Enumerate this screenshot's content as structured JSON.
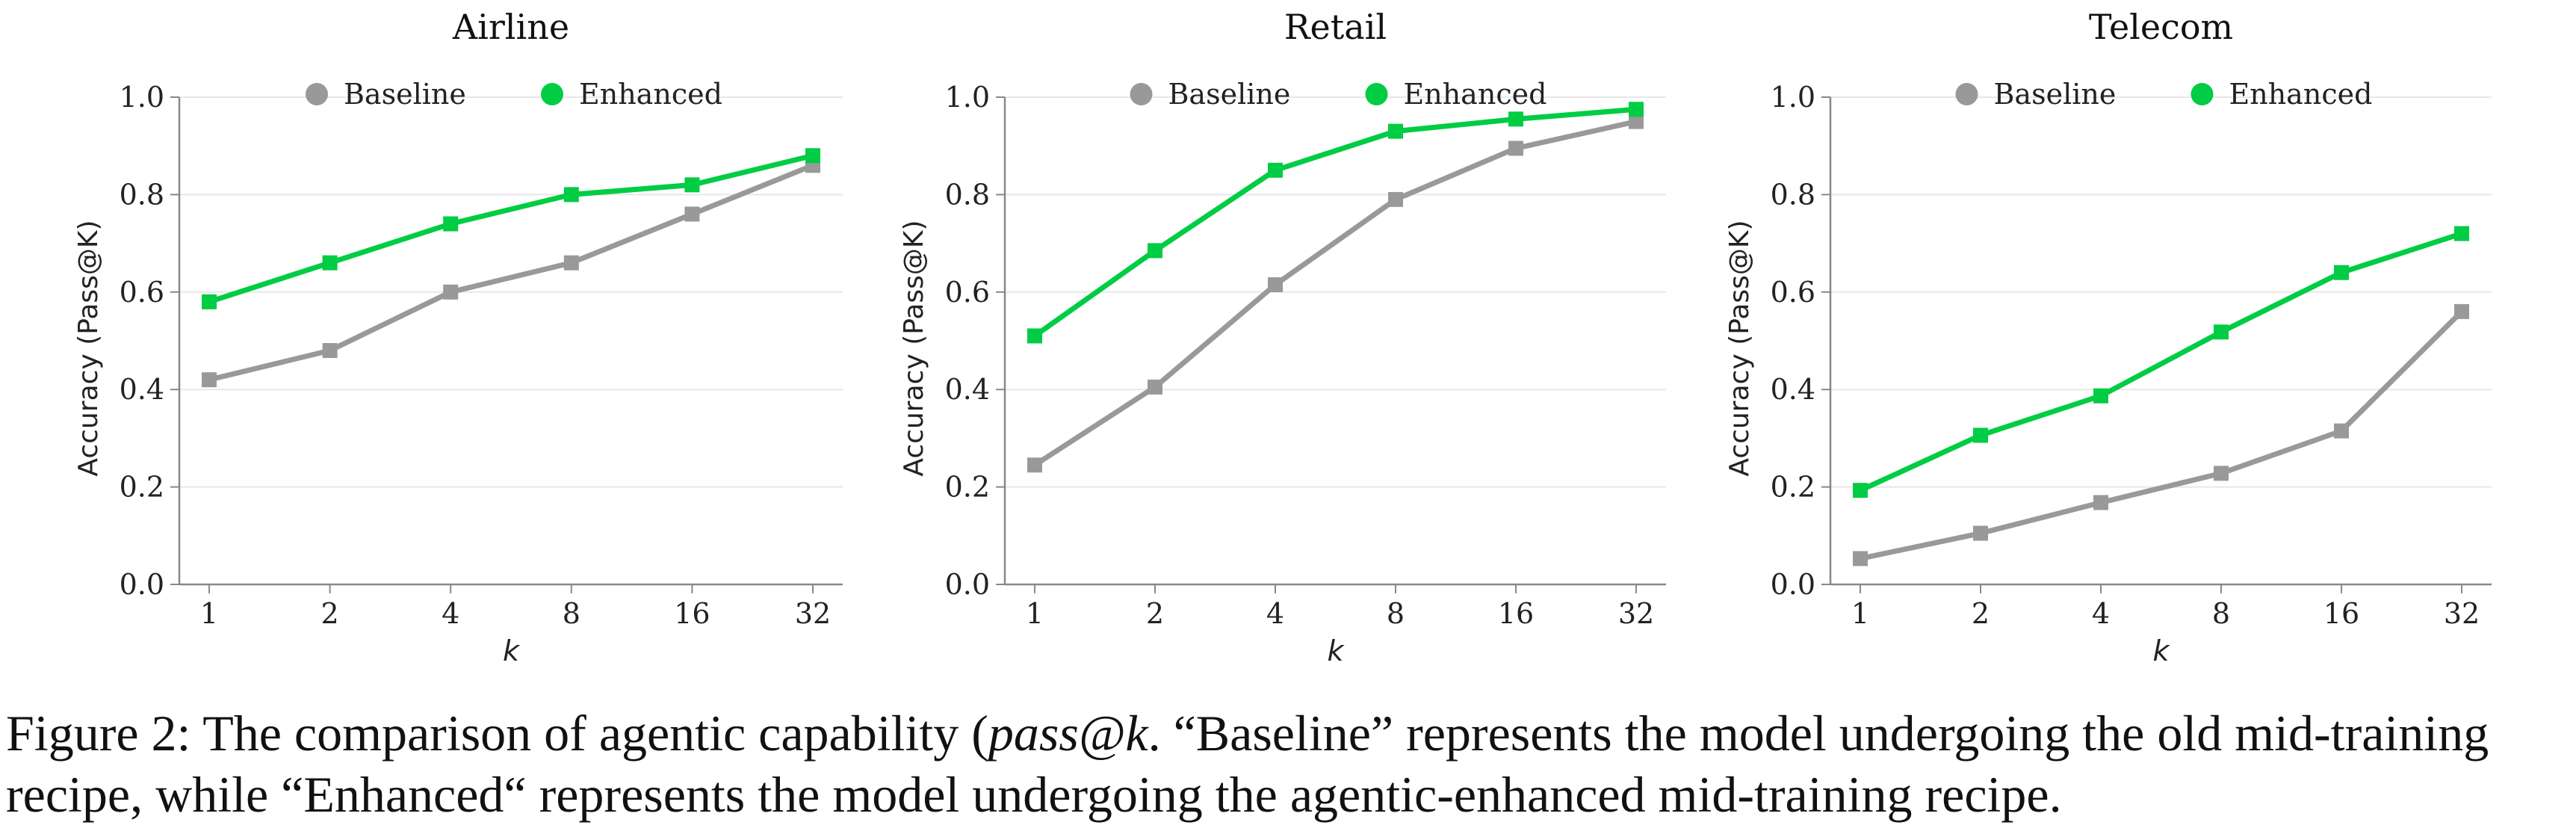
{
  "chart_data": [
    {
      "type": "line",
      "title": "Airline",
      "xlabel": "k",
      "ylabel": "Accuracy (Pass@K)",
      "categories": [
        "1",
        "2",
        "4",
        "8",
        "16",
        "32"
      ],
      "ylim": [
        0,
        1.0
      ],
      "yticks": [
        "0.0",
        "0.2",
        "0.4",
        "0.6",
        "0.8",
        "1.0"
      ],
      "grid": "horizontal",
      "legend": "top-center",
      "series": [
        {
          "name": "Baseline",
          "color": "#999999",
          "values": [
            0.42,
            0.48,
            0.6,
            0.66,
            0.76,
            0.86
          ]
        },
        {
          "name": "Enhanced",
          "color": "#00cc44",
          "values": [
            0.58,
            0.66,
            0.74,
            0.8,
            0.82,
            0.88
          ]
        }
      ]
    },
    {
      "type": "line",
      "title": "Retail",
      "xlabel": "k",
      "ylabel": "Accuracy (Pass@K)",
      "categories": [
        "1",
        "2",
        "4",
        "8",
        "16",
        "32"
      ],
      "ylim": [
        0,
        1.0
      ],
      "yticks": [
        "0.0",
        "0.2",
        "0.4",
        "0.6",
        "0.8",
        "1.0"
      ],
      "grid": "horizontal",
      "legend": "top-center",
      "series": [
        {
          "name": "Baseline",
          "color": "#999999",
          "values": [
            0.245,
            0.405,
            0.615,
            0.79,
            0.895,
            0.95
          ]
        },
        {
          "name": "Enhanced",
          "color": "#00cc44",
          "values": [
            0.51,
            0.685,
            0.85,
            0.93,
            0.955,
            0.975
          ]
        }
      ]
    },
    {
      "type": "line",
      "title": "Telecom",
      "xlabel": "k",
      "ylabel": "Accuracy (Pass@K)",
      "categories": [
        "1",
        "2",
        "4",
        "8",
        "16",
        "32"
      ],
      "ylim": [
        0,
        1.0
      ],
      "yticks": [
        "0.0",
        "0.2",
        "0.4",
        "0.6",
        "0.8",
        "1.0"
      ],
      "grid": "horizontal",
      "legend": "top-center",
      "series": [
        {
          "name": "Baseline",
          "color": "#999999",
          "values": [
            0.053,
            0.105,
            0.168,
            0.228,
            0.315,
            0.56
          ]
        },
        {
          "name": "Enhanced",
          "color": "#00cc44",
          "values": [
            0.193,
            0.306,
            0.387,
            0.518,
            0.64,
            0.72
          ]
        }
      ]
    }
  ],
  "caption": {
    "part1": "Figure 2: The comparison of agentic capability (",
    "part2": "pass@k",
    "part3": ". “Baseline” represents the model undergoing the old mid-training recipe, while “Enhanced“ represents the model undergoing the agentic-enhanced mid-training recipe."
  }
}
